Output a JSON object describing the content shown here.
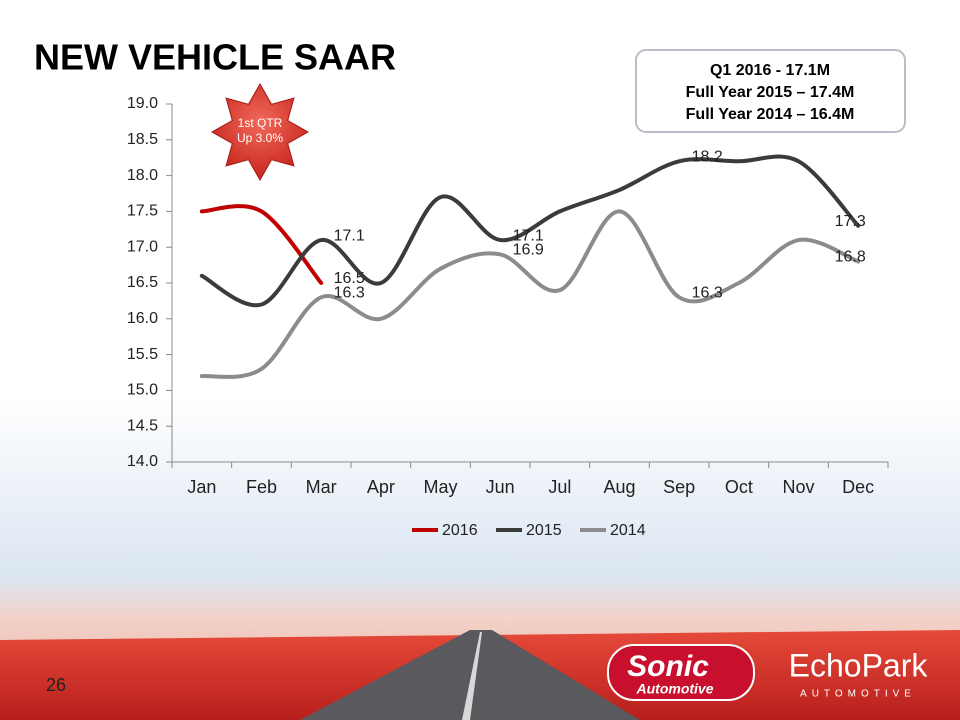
{
  "chart_data": {
    "type": "line",
    "title": "NEW VEHICLE SAAR",
    "categories": [
      "Jan",
      "Feb",
      "Mar",
      "Apr",
      "May",
      "Jun",
      "Jul",
      "Aug",
      "Sep",
      "Oct",
      "Nov",
      "Dec"
    ],
    "series": [
      {
        "name": "2016",
        "color": "#c00000",
        "values": [
          17.5,
          17.5,
          16.5,
          null,
          null,
          null,
          null,
          null,
          null,
          null,
          null,
          null
        ],
        "value_labels": [
          null,
          null,
          "16.5",
          null,
          null,
          null,
          null,
          null,
          null,
          null,
          null,
          null
        ]
      },
      {
        "name": "2015",
        "color": "#3b3b3b",
        "values": [
          16.6,
          16.2,
          17.1,
          16.5,
          17.7,
          17.1,
          17.5,
          17.8,
          18.2,
          18.2,
          18.2,
          17.3
        ],
        "value_labels": [
          null,
          null,
          "17.1",
          null,
          null,
          "17.1",
          null,
          null,
          "18.2",
          null,
          null,
          "17.3"
        ]
      },
      {
        "name": "2014",
        "color": "#8c8c8c",
        "values": [
          15.2,
          15.3,
          16.3,
          16.0,
          16.7,
          16.9,
          16.4,
          17.5,
          16.3,
          16.5,
          17.1,
          16.8
        ],
        "value_labels": [
          null,
          null,
          "16.3",
          null,
          null,
          "16.9",
          null,
          null,
          "16.3",
          null,
          null,
          "16.8"
        ]
      }
    ],
    "ylim": [
      14,
      19
    ],
    "yticks": [
      {
        "value": 14,
        "label": "14.0"
      },
      14.5,
      {
        "value": 15,
        "label": "15.0"
      },
      15.5,
      {
        "value": 16,
        "label": "16.0"
      },
      16.5,
      {
        "value": 17,
        "label": "17.0"
      },
      17.5,
      {
        "value": 18,
        "label": "18.0"
      },
      18.5,
      {
        "value": 19,
        "label": "19.0"
      }
    ],
    "grid": false,
    "smooth": true,
    "legend": "bottom"
  },
  "callout": {
    "lines": [
      "Q1 2016 -  17.1M",
      "Full Year 2015 – 17.4M",
      "Full Year 2014 – 16.4M"
    ]
  },
  "badge": {
    "lines": [
      "1st QTR",
      "Up 3.0%"
    ]
  },
  "page_number": "26",
  "logos": {
    "sonic": "Sonic",
    "sonic_sub": "Automotive",
    "echopark": "EchoPark",
    "echopark_sub": "AUTOMOTIVE"
  }
}
